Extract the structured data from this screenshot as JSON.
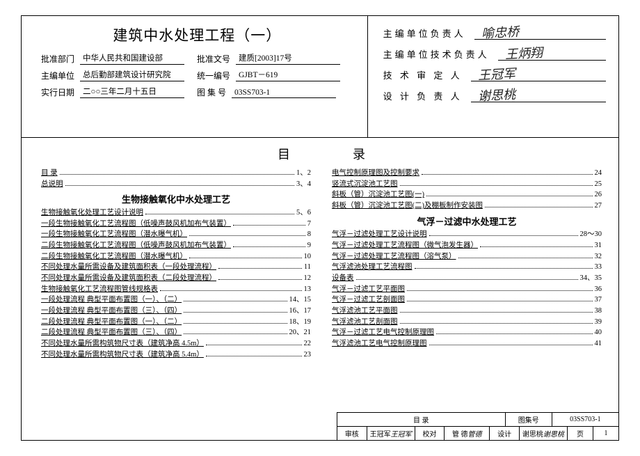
{
  "header": {
    "main_title": "建筑中水处理工程（一）",
    "rows": [
      {
        "l1": "批准部门",
        "v1": "中华人民共和国建设部",
        "l2": "批准文号",
        "v2": "建质[2003]17号"
      },
      {
        "l1": "主编单位",
        "v1": "总后勤部建筑设计研究院",
        "l2": "统一编号",
        "v2": "GJBT－619"
      },
      {
        "l1": "实行日期",
        "v1": "二○○三年二月十五日",
        "l2": "图 集 号",
        "v2": "03SS703-1"
      }
    ],
    "signatures": [
      {
        "label": "主编单位负责人",
        "sig": "喻忠桥"
      },
      {
        "label": "主编单位技术负责人",
        "sig": "王炳翔"
      },
      {
        "label": "技 术 审 定 人",
        "sig": "王冠军"
      },
      {
        "label": "设 计 负 责 人",
        "sig": "谢思桃"
      }
    ]
  },
  "toc": {
    "title": "目录",
    "left": [
      {
        "t": "目 录",
        "p": "1、2",
        "ul": true
      },
      {
        "t": "总说明",
        "p": "3、4",
        "ul": true
      },
      {
        "t": "生物接触氧化中水处理工艺",
        "section": true
      },
      {
        "t": "生物接触氧化处理工艺设计说明",
        "p": "5、6",
        "ul": true
      },
      {
        "t": "一段生物接触氧化工艺流程图（低噪声鼓风机加布气装置）",
        "p": "7",
        "ul": true
      },
      {
        "t": "一段生物接触氧化工艺流程图（潜水曝气机）",
        "p": "8",
        "ul": true
      },
      {
        "t": "二段生物接触氧化工艺流程图（低噪声鼓风机加布气装置）",
        "p": "9",
        "ul": true
      },
      {
        "t": "二段生物接触氧化工艺流程图（潜水曝气机）",
        "p": "10",
        "ul": true
      },
      {
        "t": "不同处理水量所需设备及建筑面积表（一段处理流程）",
        "p": "11",
        "ul": true
      },
      {
        "t": "不同处理水量所需设备及建筑面积表（二段处理流程）",
        "p": "12",
        "ul": true
      },
      {
        "t": "生物接触氧化工艺流程图管线规格表",
        "p": "13",
        "ul": true
      },
      {
        "t": "一段处理流程 典型平面布置图（一）、（二）",
        "p": "14、15",
        "ul": true
      },
      {
        "t": "一段处理流程 典型平面布置图（三）、（四）",
        "p": "16、17",
        "ul": true
      },
      {
        "t": "二段处理流程 典型平面布置图（一）、（二）",
        "p": "18、19",
        "ul": true
      },
      {
        "t": "二段处理流程 典型平面布置图（三）、（四）",
        "p": "20、21",
        "ul": true
      },
      {
        "t": "不同处理水量所需构筑物尺寸表（建筑净高 4.5m）",
        "p": "22",
        "ul": true
      },
      {
        "t": "不同处理水量所需构筑物尺寸表（建筑净高 5.4m）",
        "p": "23",
        "ul": true
      }
    ],
    "right": [
      {
        "t": "电气控制原理图及控制要求",
        "p": "24",
        "ul": true
      },
      {
        "t": "竖流式沉淀池工艺图",
        "p": "25",
        "ul": true
      },
      {
        "t": "斜板（管）沉淀池工艺图(一)",
        "p": "26",
        "ul": true
      },
      {
        "t": "斜板（管）沉淀池工艺图(二)及棚板制作安装图",
        "p": "27",
        "ul": true
      },
      {
        "t": "气浮－过滤中水处理工艺",
        "section": true
      },
      {
        "t": "气浮－过滤处理工艺设计说明",
        "p": "28～30",
        "ul": true
      },
      {
        "t": "气浮－过滤处理工艺流程图（微气泡发生器）",
        "p": "31",
        "ul": true
      },
      {
        "t": "气浮－过滤处理工艺流程图（溶气泵）",
        "p": "32",
        "ul": true
      },
      {
        "t": "气浮滤池处理工艺流程图",
        "p": "33",
        "ul": true
      },
      {
        "t": "设备表",
        "p": "34、35",
        "ul": true
      },
      {
        "t": "气浮－过滤工艺平面图",
        "p": "36",
        "ul": true
      },
      {
        "t": "气浮－过滤工艺剖面图",
        "p": "37",
        "ul": true
      },
      {
        "t": "气浮滤池工艺平面图",
        "p": "38",
        "ul": true
      },
      {
        "t": "气浮滤池工艺剖面图",
        "p": "39",
        "ul": true
      },
      {
        "t": "气浮－过滤工艺电气控制原理图",
        "p": "40",
        "ul": true
      },
      {
        "t": "气浮滤池工艺电气控制原理图",
        "p": "41",
        "ul": true
      }
    ]
  },
  "footer": {
    "r1_title": "目 录",
    "r1_set_label": "图集号",
    "r1_set_val": "03SS703-1",
    "r2": [
      {
        "l": "审核",
        "v": "王冠军",
        "s": "王冠军"
      },
      {
        "l": "校对",
        "v": "管 德",
        "s": "管德"
      },
      {
        "l": "设计",
        "v": "谢思桃",
        "s": "谢思桃"
      },
      {
        "l": "页",
        "v": "1"
      }
    ]
  }
}
